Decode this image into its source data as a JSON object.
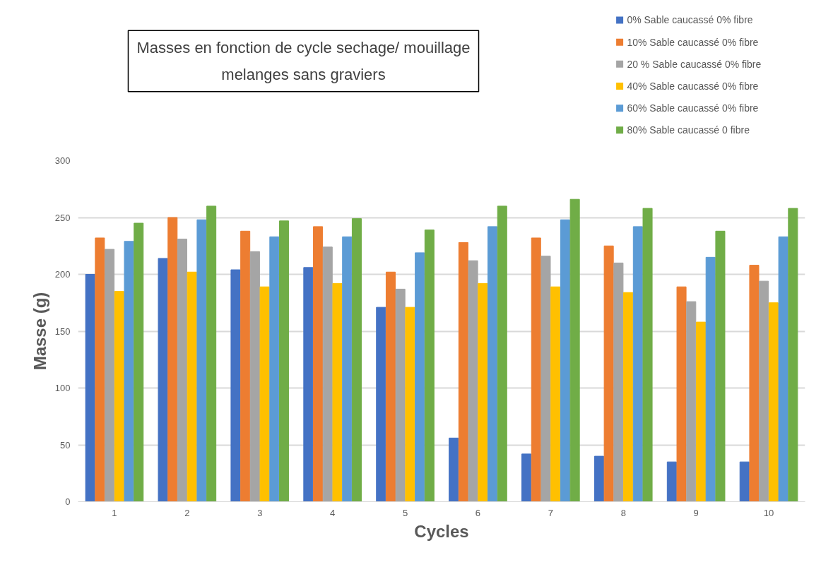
{
  "chart_data": {
    "type": "bar",
    "title": "Masses en fonction de cycle sechage/ mouillage\nmelanges sans graviers",
    "xlabel": "Cycles",
    "ylabel": "Masse (g)",
    "categories": [
      "1",
      "2",
      "3",
      "4",
      "5",
      "6",
      "7",
      "8",
      "9",
      "10"
    ],
    "series": [
      {
        "name": "0% Sable caucassé 0% fibre",
        "color": "#4472c4",
        "values": [
          200,
          214,
          204,
          206,
          171,
          56,
          42,
          40,
          35,
          35
        ]
      },
      {
        "name": "10% Sable caucassé 0% fibre",
        "color": "#ed7d31",
        "values": [
          232,
          250,
          238,
          242,
          202,
          228,
          232,
          225,
          189,
          208
        ]
      },
      {
        "name": "20 % Sable caucassé 0% fibre",
        "color": "#a5a5a5",
        "values": [
          222,
          231,
          220,
          224,
          187,
          212,
          216,
          210,
          176,
          194
        ]
      },
      {
        "name": "40% Sable caucassé 0% fibre",
        "color": "#ffc000",
        "values": [
          185,
          202,
          189,
          192,
          171,
          192,
          189,
          184,
          158,
          175
        ]
      },
      {
        "name": "60% Sable caucassé 0% fibre",
        "color": "#5b9bd5",
        "values": [
          229,
          248,
          233,
          233,
          219,
          242,
          248,
          242,
          215,
          233
        ]
      },
      {
        "name": "80% Sable caucassé 0 fibre",
        "color": "#70ad47",
        "values": [
          245,
          260,
          247,
          249,
          239,
          260,
          266,
          258,
          238,
          258
        ]
      }
    ],
    "ylim": [
      0,
      300
    ],
    "yticks": [
      0,
      50,
      100,
      150,
      200,
      250,
      300
    ],
    "grid": "y",
    "legend": "top right"
  }
}
